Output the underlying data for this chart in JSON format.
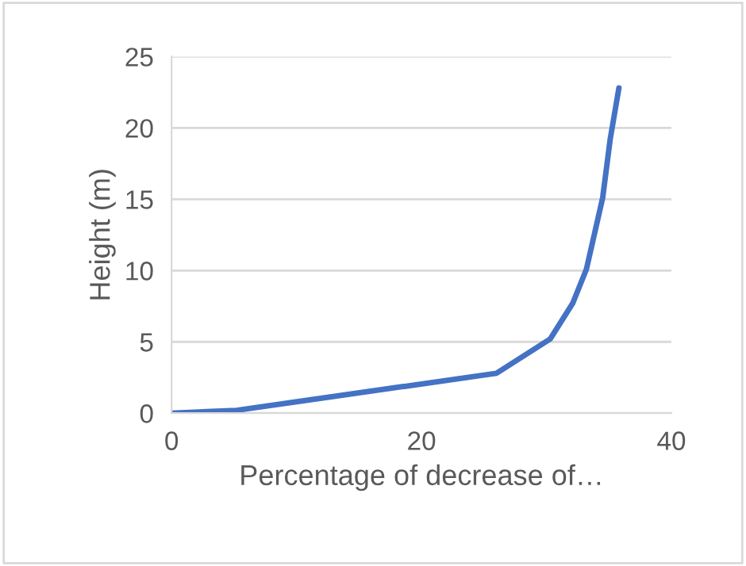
{
  "chart_data": {
    "type": "line",
    "xlabel": "Percentage of decrease of…",
    "ylabel": "Height (m)",
    "series": [
      {
        "color": "#4472c4",
        "x": [
          0,
          5.2,
          26.0,
          30.3,
          32.1,
          33.2,
          34.5,
          35.1,
          35.8
        ],
        "values": [
          0,
          0.2,
          2.8,
          5.2,
          7.7,
          10.1,
          15.1,
          19.2,
          22.8
        ]
      }
    ],
    "xlim": [
      0,
      40
    ],
    "xticks": [
      0,
      20,
      40
    ],
    "ylim": [
      0,
      25
    ],
    "yticks": [
      0,
      5,
      10,
      15,
      20,
      25
    ],
    "grid": "y",
    "marker": "none",
    "line_style": "solid"
  }
}
